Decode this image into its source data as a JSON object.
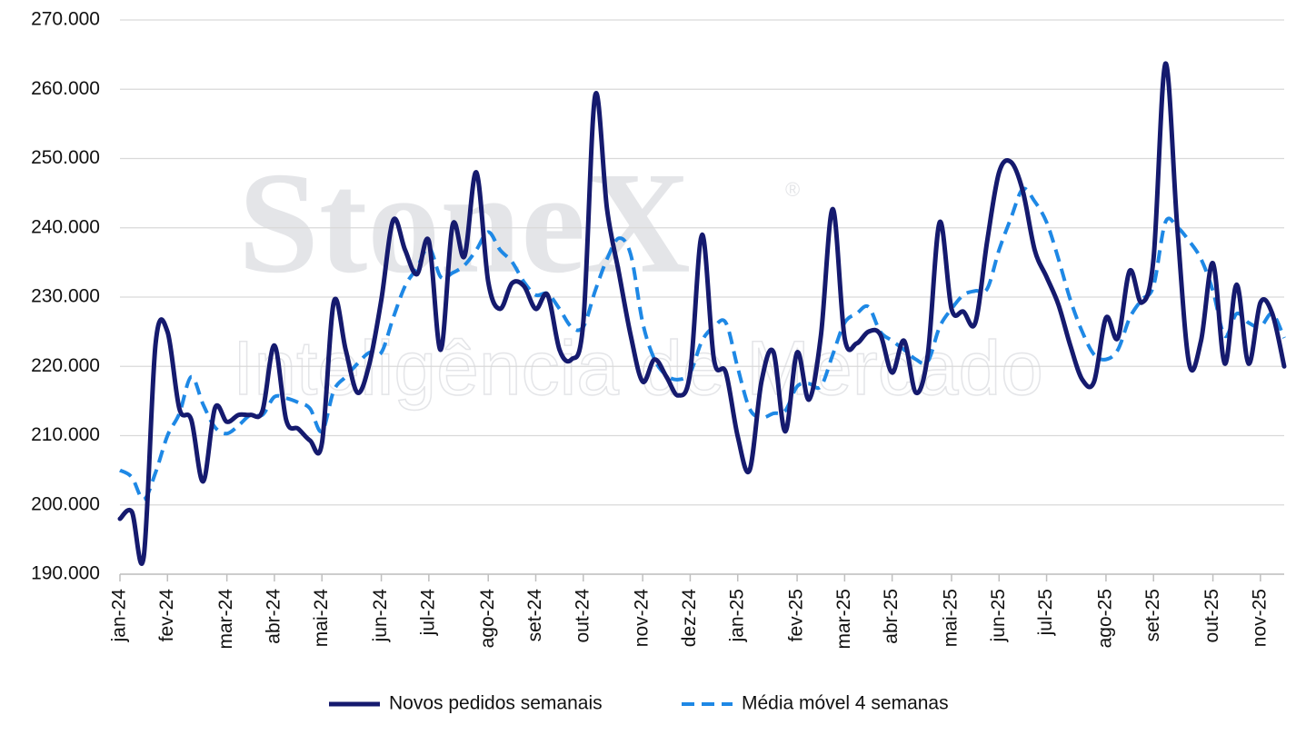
{
  "chart_data": {
    "type": "line",
    "watermark": {
      "brand": "StoneX",
      "mark": "®",
      "tagline": "Inteligência de Mercado"
    },
    "categories": [
      "jan-24",
      null,
      null,
      null,
      "fev-24",
      null,
      null,
      null,
      null,
      "mar-24",
      null,
      null,
      null,
      "abr-24",
      null,
      null,
      null,
      "mai-24",
      null,
      null,
      null,
      null,
      "jun-24",
      null,
      null,
      null,
      "jul-24",
      null,
      null,
      null,
      null,
      "ago-24",
      null,
      null,
      null,
      "set-24",
      null,
      null,
      null,
      "out-24",
      null,
      null,
      null,
      null,
      "nov-24",
      null,
      null,
      null,
      "dez-24",
      null,
      null,
      null,
      "jan-25",
      null,
      null,
      null,
      null,
      "fev-25",
      null,
      null,
      null,
      "mar-25",
      null,
      null,
      null,
      "abr-25",
      null,
      null,
      null,
      null,
      "mai-25",
      null,
      null,
      null,
      "jun-25",
      null,
      null,
      null,
      "jul-25",
      null,
      null,
      null,
      null,
      "ago-25",
      null,
      null,
      null,
      "set-25",
      null,
      null,
      null,
      null,
      "out-25",
      null,
      null,
      null,
      "nov-25",
      null,
      null
    ],
    "series": [
      {
        "name": "Novos pedidos semanais",
        "color": "#151a6e",
        "dashed": false,
        "values": [
          198000,
          199000,
          192500,
          223300,
          225000,
          213900,
          212300,
          203400,
          214000,
          212000,
          213000,
          213000,
          213600,
          223000,
          212200,
          211000,
          209300,
          208900,
          229300,
          222400,
          216200,
          220400,
          229600,
          241100,
          236800,
          233300,
          238100,
          222400,
          240400,
          235900,
          248000,
          232200,
          228300,
          232000,
          231600,
          228300,
          230300,
          222400,
          221000,
          226300,
          259100,
          242700,
          233500,
          224400,
          217800,
          221000,
          218500,
          215800,
          219100,
          239000,
          221000,
          219100,
          209900,
          205000,
          217800,
          222100,
          210600,
          222000,
          215200,
          224400,
          242700,
          224100,
          223300,
          225000,
          224600,
          219100,
          223700,
          216200,
          221700,
          240800,
          228300,
          227900,
          226300,
          238100,
          248000,
          249500,
          245300,
          236800,
          232900,
          228900,
          223000,
          218100,
          217800,
          227000,
          224100,
          233800,
          229200,
          235500,
          263700,
          240100,
          220400,
          223700,
          234900,
          220400,
          231800,
          220400,
          229200,
          227600,
          220000
        ]
      },
      {
        "name": "Média móvel 4 semanas",
        "color": "#1e88e5",
        "dashed": true,
        "values": [
          205000,
          204000,
          200800,
          204700,
          210000,
          213200,
          218500,
          214500,
          211200,
          210300,
          211500,
          213000,
          213000,
          215600,
          215400,
          214800,
          213900,
          210600,
          216500,
          218500,
          220400,
          222000,
          222000,
          227000,
          231600,
          234200,
          237200,
          232900,
          233500,
          234600,
          236800,
          239400,
          236800,
          235100,
          232200,
          230300,
          230500,
          228300,
          225700,
          225700,
          230900,
          235500,
          238500,
          236100,
          226300,
          221000,
          218700,
          218100,
          219100,
          223700,
          225700,
          226300,
          219800,
          213900,
          212600,
          213200,
          213600,
          217100,
          217500,
          217100,
          221700,
          226300,
          227600,
          228600,
          225000,
          223700,
          222400,
          221000,
          220700,
          225700,
          228300,
          230300,
          230900,
          231200,
          236800,
          241400,
          245600,
          243800,
          240800,
          235500,
          229600,
          225000,
          221700,
          221000,
          222400,
          227000,
          229600,
          231600,
          240800,
          240100,
          238100,
          235500,
          230900,
          224400,
          227600,
          226300,
          225700,
          227600,
          224100
        ]
      }
    ],
    "ylim": [
      190000,
      270000
    ],
    "yticks": [
      {
        "value": 190000,
        "label": "190.000"
      },
      {
        "value": 200000,
        "label": "200.000"
      },
      {
        "value": 210000,
        "label": "210.000"
      },
      {
        "value": 220000,
        "label": "220.000"
      },
      {
        "value": 230000,
        "label": "230.000"
      },
      {
        "value": 240000,
        "label": "240.000"
      },
      {
        "value": 250000,
        "label": "250.000"
      },
      {
        "value": 260000,
        "label": "260.000"
      },
      {
        "value": 270000,
        "label": "270.000"
      }
    ],
    "grid": true,
    "legend": "bottom"
  }
}
